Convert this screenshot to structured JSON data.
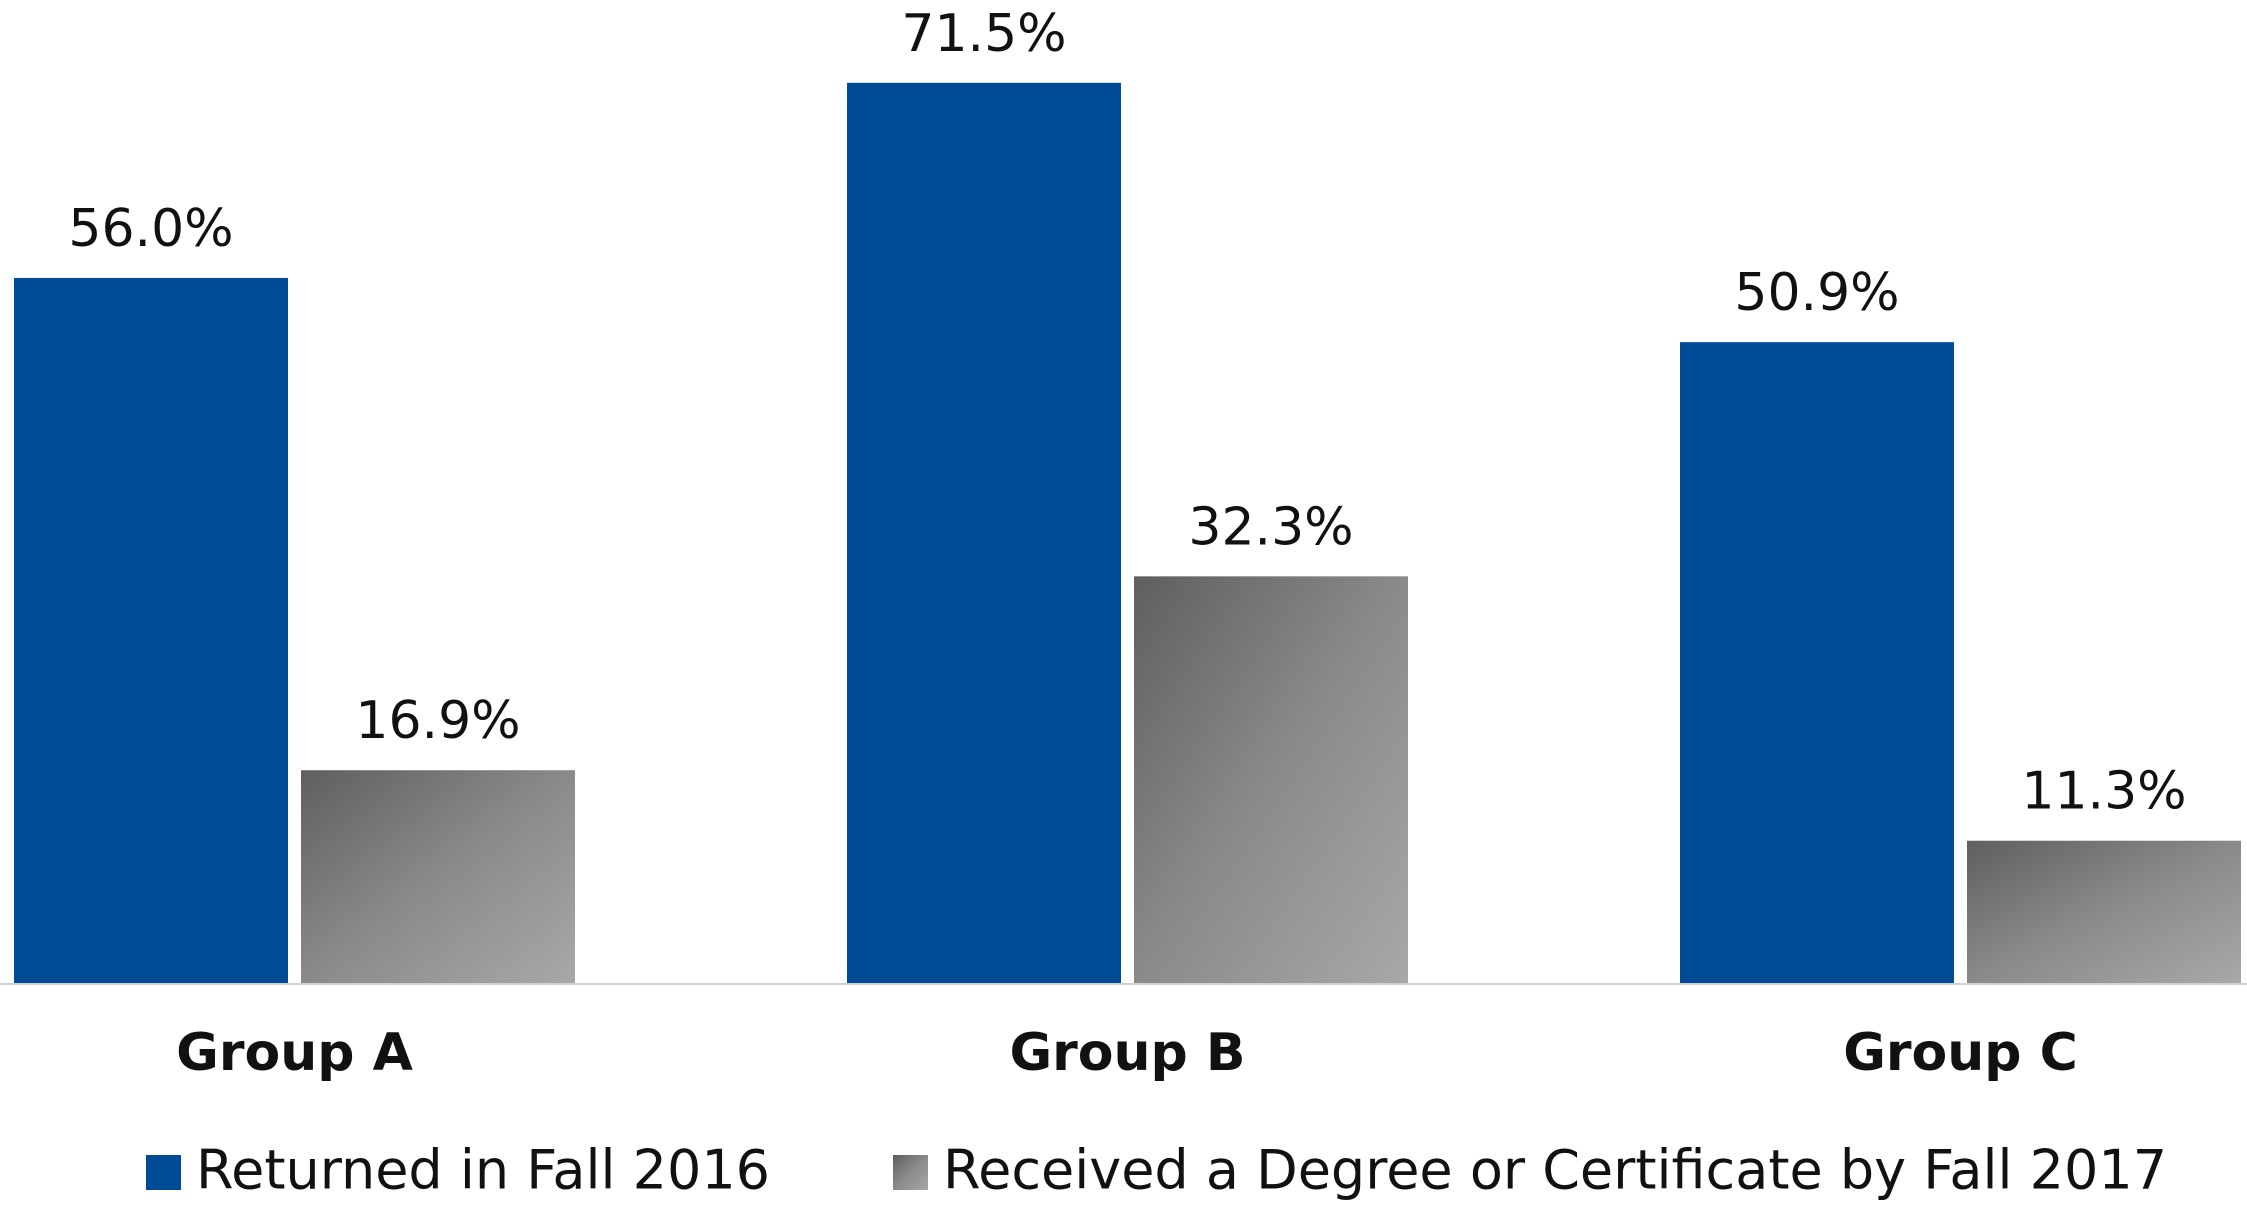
{
  "chart_data": {
    "type": "bar",
    "categories": [
      "Group A",
      "Group B",
      "Group C"
    ],
    "series": [
      {
        "name": "Returned in Fall 2016",
        "color": "#004b96",
        "values": [
          56.0,
          71.5,
          50.9
        ],
        "value_labels": [
          "56.0%",
          "71.5%",
          "50.9%"
        ]
      },
      {
        "name": "Received a Degree or Certificate by Fall 2017",
        "color": "#8a8a8a",
        "gradient": [
          "#5f5f5f",
          "#a8a8a8"
        ],
        "values": [
          16.9,
          32.3,
          11.3
        ],
        "value_labels": [
          "16.9%",
          "32.3%",
          "11.3%"
        ]
      }
    ],
    "legend": "bottom"
  }
}
